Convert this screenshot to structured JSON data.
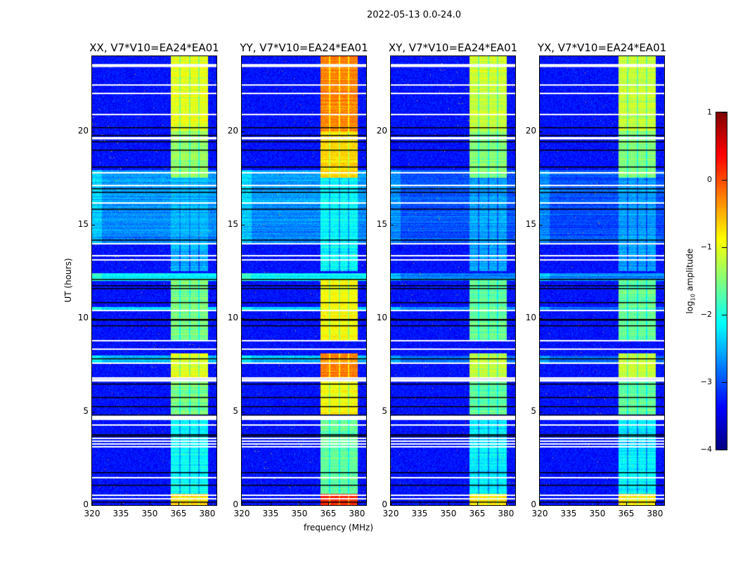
{
  "chart_data": {
    "type": "heatmap",
    "title": "2022-05-13 0.0-24.0",
    "xlabel": "frequency (MHz)",
    "ylabel": "UT (hours)",
    "xlim": [
      320,
      384.8
    ],
    "ylim": [
      0,
      24
    ],
    "xticks": [
      320,
      335,
      350,
      365,
      380
    ],
    "yticks": [
      0,
      5,
      10,
      15,
      20
    ],
    "colorbar": {
      "label_main": "log",
      "label_sub": "10",
      "label_rest": " amplitude",
      "range": [
        -4,
        1
      ],
      "ticks": [
        1,
        0,
        -1,
        -2,
        -3,
        -4
      ],
      "tick_labels": [
        "1",
        "0",
        "−1",
        "−2",
        "−3",
        "−4"
      ],
      "colormap": "jet"
    },
    "panels": [
      {
        "title": "XX, V7*V10=EA24*EA01",
        "rfi_scale": 1.0,
        "wide_scale": 1.0
      },
      {
        "title": "YY, V7*V10=EA24*EA01",
        "rfi_scale": 1.25,
        "wide_scale": 1.0
      },
      {
        "title": "XY, V7*V10=EA24*EA01",
        "rfi_scale": 0.95,
        "wide_scale": 0.5
      },
      {
        "title": "YX, V7*V10=EA24*EA01",
        "rfi_scale": 0.95,
        "wide_scale": 0.5
      }
    ],
    "background_level": -3.3,
    "rfi_channels_mhz": [
      [
        361,
        365.4
      ],
      [
        366.1,
        370.5
      ],
      [
        371.2,
        375.3
      ],
      [
        376.0,
        380.3
      ]
    ],
    "rfi_segments": [
      {
        "t": [
          20.0,
          24.0
        ],
        "level": -1.0
      },
      {
        "t": [
          17.5,
          20.0
        ],
        "level": -1.35
      },
      {
        "t": [
          12.5,
          17.5
        ],
        "level": -2.5
      },
      {
        "t": [
          8.8,
          12.1
        ],
        "level": -1.5
      },
      {
        "t": [
          6.8,
          8.1
        ],
        "level": -1.0
      },
      {
        "t": [
          4.8,
          6.7
        ],
        "level": -1.5
      },
      {
        "t": [
          0.6,
          4.6
        ],
        "level": -2.1
      },
      {
        "t": [
          0.0,
          0.6
        ],
        "level": -0.6
      }
    ],
    "broadband_segments": [
      {
        "t": [
          16.2,
          17.9
        ],
        "level": -2.6
      },
      {
        "t": [
          14.0,
          16.2
        ],
        "level": -2.7
      },
      {
        "t": [
          12.0,
          12.4
        ],
        "level": -2.2
      },
      {
        "t": [
          10.4,
          10.6
        ],
        "level": -2.3
      },
      {
        "t": [
          7.6,
          8.0
        ],
        "level": -2.4
      }
    ],
    "flagged_times_hours": [
      [
        23.42,
        23.58
      ],
      22.46,
      22.0,
      20.9,
      [
        19.55,
        19.68
      ],
      17.77,
      17.1,
      16.16,
      13.99,
      13.35,
      13.09,
      10.42,
      8.77,
      8.32,
      7.57,
      6.79,
      [
        6.6,
        6.75
      ],
      [
        4.55,
        4.78
      ],
      4.27,
      3.56,
      3.41,
      3.26,
      3.11,
      1.46,
      0.52,
      0.34
    ],
    "dropout_times_hours": [
      20.2,
      19.8,
      19.45,
      19.0,
      18.1,
      16.95,
      16.76,
      15.86,
      14.2,
      12.1,
      11.76,
      11.6,
      10.84,
      9.97,
      9.9,
      9.63,
      7.84,
      6.5,
      5.77,
      5.3,
      4.84,
      3.79,
      3.72,
      1.76,
      1.09,
      0.19
    ]
  }
}
